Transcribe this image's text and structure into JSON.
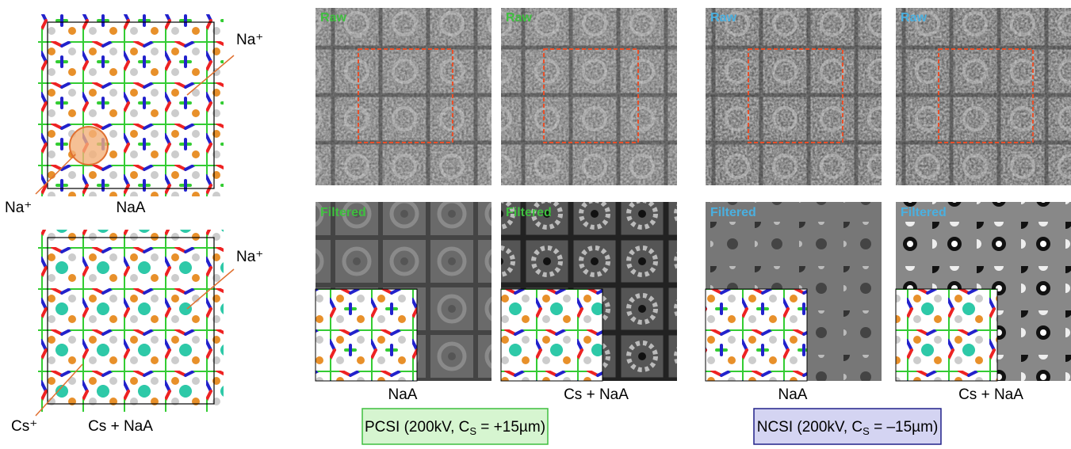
{
  "models": [
    {
      "label": "NaA",
      "annotations": [
        "Na⁺",
        "Na⁺"
      ]
    },
    {
      "label": "Cs + NaA",
      "annotations": [
        "Na⁺",
        "Cs⁺"
      ]
    }
  ],
  "panels": [
    {
      "raw_label": "Raw",
      "filtered_label": "Filtered",
      "caption": "NaA"
    },
    {
      "raw_label": "Raw",
      "filtered_label": "Filtered",
      "caption": "Cs + NaA"
    },
    {
      "raw_label": "Raw",
      "filtered_label": "Filtered",
      "caption": "NaA"
    },
    {
      "raw_label": "Raw",
      "filtered_label": "Filtered",
      "caption": "Cs + NaA"
    }
  ],
  "groups": [
    {
      "label_parts": [
        "PCSI (200kV, C",
        "S",
        " = +15µm)"
      ]
    },
    {
      "label_parts": [
        "NCSI (200kV, C",
        "S",
        " = –15µm)"
      ]
    }
  ]
}
